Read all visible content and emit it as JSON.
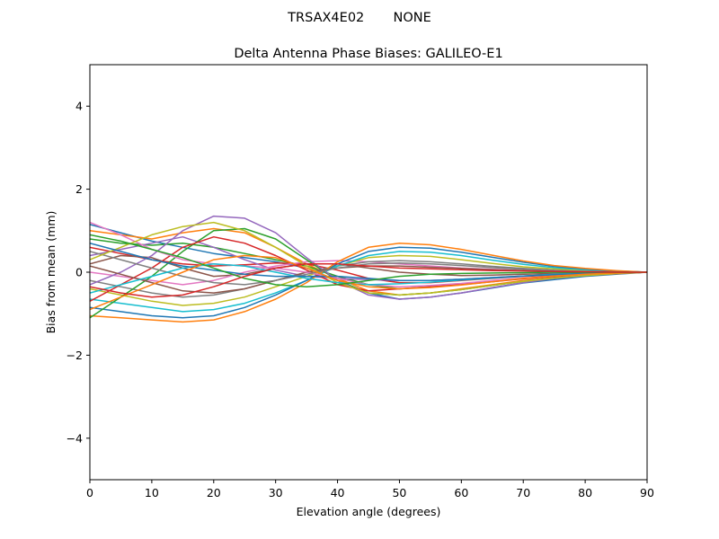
{
  "figure": {
    "suptitle": "TRSAX4E02       NONE"
  },
  "chart_data": {
    "type": "line",
    "title": "Delta Antenna Phase Biases: GALILEO-E1",
    "xlabel": "Elevation angle (degrees)",
    "ylabel": "Bias from mean (mm)",
    "xlim": [
      0,
      90
    ],
    "ylim": [
      -5,
      5
    ],
    "xticks": [
      0,
      10,
      20,
      30,
      40,
      50,
      60,
      70,
      80,
      90
    ],
    "yticks": [
      -4,
      -2,
      0,
      2,
      4
    ],
    "ytick_labels": [
      "−4",
      "−2",
      "0",
      "2",
      "4"
    ],
    "grid": false,
    "legend": "none",
    "x": [
      0,
      5,
      10,
      15,
      20,
      25,
      30,
      35,
      40,
      45,
      50,
      55,
      60,
      65,
      70,
      75,
      80,
      85,
      90
    ],
    "series": [
      {
        "color": "#1f77b4",
        "values": [
          1.15,
          0.95,
          0.75,
          0.6,
          0.45,
          0.35,
          0.25,
          0.1,
          -0.2,
          -0.5,
          -0.65,
          -0.6,
          -0.5,
          -0.38,
          -0.26,
          -0.18,
          -0.1,
          -0.05,
          0.0
        ]
      },
      {
        "color": "#ff7f0e",
        "values": [
          1.0,
          0.9,
          0.8,
          0.95,
          1.05,
          0.95,
          0.6,
          0.2,
          -0.15,
          -0.45,
          -0.55,
          -0.5,
          -0.4,
          -0.3,
          -0.2,
          -0.13,
          -0.08,
          -0.04,
          0.0
        ]
      },
      {
        "color": "#2ca02c",
        "values": [
          0.8,
          0.7,
          0.65,
          0.7,
          0.6,
          0.45,
          0.3,
          0.15,
          -0.1,
          -0.3,
          -0.4,
          -0.35,
          -0.3,
          -0.22,
          -0.15,
          -0.1,
          -0.06,
          -0.03,
          0.0
        ]
      },
      {
        "color": "#d62728",
        "values": [
          0.6,
          0.45,
          0.3,
          0.2,
          0.15,
          0.18,
          0.22,
          0.2,
          0.05,
          -0.15,
          -0.25,
          -0.25,
          -0.2,
          -0.15,
          -0.1,
          -0.07,
          -0.04,
          -0.02,
          0.0
        ]
      },
      {
        "color": "#9467bd",
        "values": [
          0.4,
          0.55,
          0.7,
          0.85,
          0.6,
          0.3,
          0.05,
          -0.1,
          -0.15,
          -0.18,
          -0.2,
          -0.2,
          -0.17,
          -0.13,
          -0.09,
          -0.06,
          -0.04,
          -0.02,
          0.0
        ]
      },
      {
        "color": "#8c564b",
        "values": [
          0.2,
          0.4,
          0.35,
          0.1,
          -0.1,
          -0.05,
          0.1,
          0.2,
          0.2,
          0.1,
          0.0,
          -0.05,
          -0.08,
          -0.07,
          -0.05,
          -0.03,
          -0.02,
          -0.01,
          0.0
        ]
      },
      {
        "color": "#e377c2",
        "values": [
          0.0,
          -0.1,
          -0.2,
          -0.3,
          -0.2,
          0.0,
          0.15,
          0.25,
          0.28,
          0.25,
          0.2,
          0.15,
          0.1,
          0.07,
          0.04,
          0.02,
          0.01,
          0.0,
          0.0
        ]
      },
      {
        "color": "#7f7f7f",
        "values": [
          -0.2,
          -0.35,
          -0.5,
          -0.6,
          -0.55,
          -0.4,
          -0.2,
          0.0,
          0.15,
          0.25,
          0.28,
          0.25,
          0.2,
          0.14,
          0.09,
          0.05,
          0.03,
          0.01,
          0.0
        ]
      },
      {
        "color": "#bcbd22",
        "values": [
          -0.4,
          -0.55,
          -0.7,
          -0.8,
          -0.75,
          -0.6,
          -0.35,
          -0.1,
          0.15,
          0.35,
          0.4,
          0.38,
          0.3,
          0.21,
          0.13,
          0.08,
          0.04,
          0.02,
          0.0
        ]
      },
      {
        "color": "#17becf",
        "values": [
          -0.65,
          -0.75,
          -0.85,
          -0.95,
          -0.9,
          -0.75,
          -0.5,
          -0.2,
          0.15,
          0.4,
          0.5,
          0.48,
          0.4,
          0.29,
          0.19,
          0.11,
          0.06,
          0.03,
          0.0
        ]
      },
      {
        "color": "#1f77b4",
        "values": [
          -0.85,
          -0.95,
          -1.05,
          -1.1,
          -1.05,
          -0.85,
          -0.55,
          -0.2,
          0.2,
          0.5,
          0.6,
          0.58,
          0.48,
          0.36,
          0.24,
          0.14,
          0.08,
          0.03,
          0.0
        ]
      },
      {
        "color": "#ff7f0e",
        "values": [
          -1.05,
          -1.1,
          -1.15,
          -1.2,
          -1.15,
          -0.95,
          -0.65,
          -0.25,
          0.25,
          0.6,
          0.7,
          0.66,
          0.55,
          0.41,
          0.27,
          0.16,
          0.09,
          0.04,
          0.0
        ]
      },
      {
        "color": "#2ca02c",
        "values": [
          -1.1,
          -0.6,
          -0.1,
          0.5,
          1.0,
          1.05,
          0.8,
          0.3,
          -0.2,
          -0.5,
          -0.55,
          -0.5,
          -0.42,
          -0.32,
          -0.22,
          -0.14,
          -0.08,
          -0.03,
          0.0
        ]
      },
      {
        "color": "#d62728",
        "values": [
          -0.7,
          -0.3,
          0.1,
          0.6,
          0.85,
          0.7,
          0.4,
          0.05,
          -0.3,
          -0.45,
          -0.4,
          -0.35,
          -0.3,
          -0.23,
          -0.16,
          -0.1,
          -0.06,
          -0.03,
          0.0
        ]
      },
      {
        "color": "#9467bd",
        "values": [
          -0.3,
          0.0,
          0.4,
          1.0,
          1.35,
          1.3,
          0.95,
          0.35,
          -0.2,
          -0.55,
          -0.65,
          -0.6,
          -0.5,
          -0.37,
          -0.25,
          -0.15,
          -0.08,
          -0.03,
          0.0
        ]
      },
      {
        "color": "#8c564b",
        "values": [
          0.15,
          -0.05,
          -0.25,
          -0.45,
          -0.5,
          -0.4,
          -0.2,
          0.0,
          0.1,
          0.15,
          0.15,
          0.12,
          0.09,
          0.06,
          0.04,
          0.02,
          0.01,
          0.0,
          0.0
        ]
      },
      {
        "color": "#e377c2",
        "values": [
          1.2,
          0.9,
          0.55,
          0.3,
          0.2,
          0.15,
          0.1,
          0.0,
          -0.15,
          -0.3,
          -0.35,
          -0.32,
          -0.27,
          -0.2,
          -0.14,
          -0.09,
          -0.05,
          -0.02,
          0.0
        ]
      },
      {
        "color": "#7f7f7f",
        "values": [
          0.5,
          0.3,
          0.1,
          -0.1,
          -0.25,
          -0.3,
          -0.2,
          -0.05,
          0.1,
          0.2,
          0.22,
          0.2,
          0.16,
          0.11,
          0.07,
          0.04,
          0.02,
          0.01,
          0.0
        ]
      },
      {
        "color": "#bcbd22",
        "values": [
          0.3,
          0.6,
          0.9,
          1.1,
          1.2,
          1.0,
          0.6,
          0.15,
          -0.25,
          -0.5,
          -0.55,
          -0.5,
          -0.42,
          -0.32,
          -0.22,
          -0.14,
          -0.08,
          -0.03,
          0.0
        ]
      },
      {
        "color": "#17becf",
        "values": [
          -0.5,
          -0.3,
          -0.1,
          0.1,
          0.2,
          0.15,
          0.0,
          -0.15,
          -0.25,
          -0.3,
          -0.28,
          -0.24,
          -0.19,
          -0.14,
          -0.09,
          -0.05,
          -0.03,
          -0.01,
          0.0
        ]
      },
      {
        "color": "#1f77b4",
        "values": [
          0.7,
          0.5,
          0.3,
          0.15,
          0.05,
          -0.05,
          -0.1,
          -0.1,
          -0.1,
          -0.15,
          -0.2,
          -0.2,
          -0.17,
          -0.13,
          -0.09,
          -0.06,
          -0.03,
          -0.01,
          0.0
        ]
      },
      {
        "color": "#ff7f0e",
        "values": [
          -0.9,
          -0.6,
          -0.3,
          0.0,
          0.3,
          0.4,
          0.35,
          0.1,
          -0.2,
          -0.35,
          -0.4,
          -0.37,
          -0.31,
          -0.23,
          -0.15,
          -0.09,
          -0.05,
          -0.02,
          0.0
        ]
      },
      {
        "color": "#2ca02c",
        "values": [
          0.9,
          0.75,
          0.55,
          0.35,
          0.1,
          -0.15,
          -0.3,
          -0.35,
          -0.3,
          -0.2,
          -0.1,
          -0.05,
          -0.03,
          -0.02,
          -0.01,
          0.0,
          0.0,
          0.0,
          0.0
        ]
      },
      {
        "color": "#d62728",
        "values": [
          -0.35,
          -0.5,
          -0.6,
          -0.55,
          -0.35,
          -0.1,
          0.1,
          0.2,
          0.2,
          0.15,
          0.1,
          0.08,
          0.06,
          0.04,
          0.03,
          0.02,
          0.01,
          0.0,
          0.0
        ]
      }
    ]
  }
}
